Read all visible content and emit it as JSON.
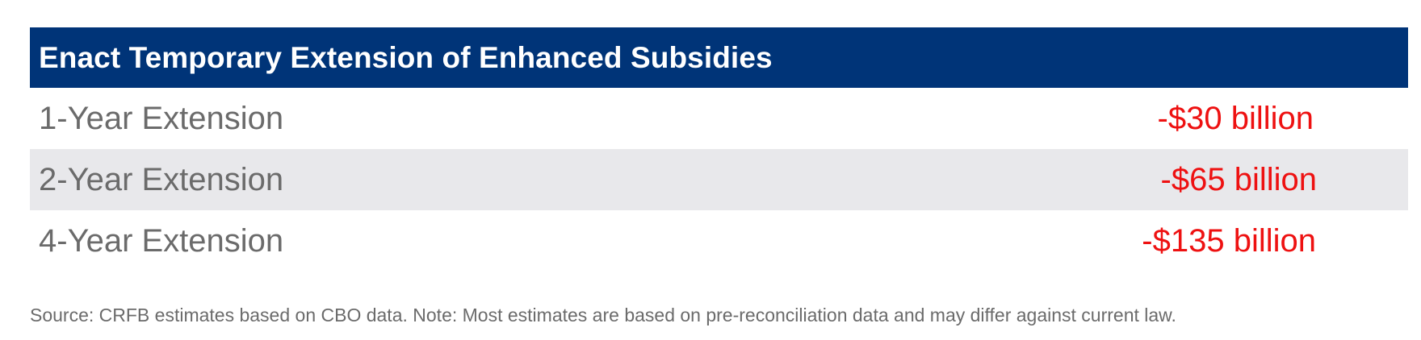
{
  "table": {
    "title": "Enact Temporary Extension of Enhanced Subsidies",
    "rows": [
      {
        "label": "1-Year Extension",
        "value": "-$30 billion"
      },
      {
        "label": "2-Year Extension",
        "value": "-$65 billion"
      },
      {
        "label": "4-Year Extension",
        "value": "-$135 billion"
      }
    ]
  },
  "footnote": "Source: CRFB estimates based on CBO data. Note: Most estimates are based on pre-reconciliation data and may differ against current law.",
  "colors": {
    "header_bg": "#003478",
    "negative_value": "#ee1111",
    "alt_row_bg": "#e8e8eb"
  }
}
